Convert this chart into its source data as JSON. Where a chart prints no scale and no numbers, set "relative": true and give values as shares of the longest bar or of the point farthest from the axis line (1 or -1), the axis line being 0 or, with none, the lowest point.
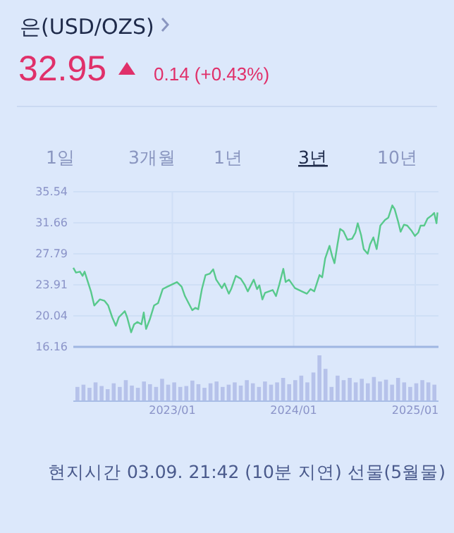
{
  "chart_data": [
    {
      "type": "line",
      "title": "은(USD/OZS)",
      "subtitle": "32.95",
      "color": "#58c98c",
      "grid": true,
      "marker": "none",
      "line_style": "solid",
      "annotations": [
        "0.14 (+0.43%)",
        "1일",
        "3개월",
        "1년",
        "3년",
        "10년",
        "현지시간 03.09. 21:42 (10분 지연) 선물(5월물)"
      ],
      "xlim": [
        "2022-03-09",
        "2025-03-12"
      ],
      "xticks": [
        {
          "value": "2023-01-01",
          "label": "2023/01"
        },
        {
          "value": "2024-01-01",
          "label": "2024/01"
        },
        {
          "value": "2025-01-01",
          "label": "2025/01"
        }
      ],
      "ylim": [
        16.16,
        35.54
      ],
      "yticks": [
        16.16,
        20.04,
        23.91,
        27.79,
        31.66,
        35.54
      ],
      "x": [
        "2022-03-09",
        "2022-03-17",
        "2022-03-29",
        "2022-04-06",
        "2022-04-12",
        "2022-05-01",
        "2022-05-11",
        "2022-05-28",
        "2022-06-11",
        "2022-06-22",
        "2022-07-04",
        "2022-07-15",
        "2022-07-24",
        "2022-08-11",
        "2022-08-18",
        "2022-08-30",
        "2022-09-08",
        "2022-09-18",
        "2022-09-30",
        "2022-10-07",
        "2022-10-14",
        "2022-10-25",
        "2022-11-07",
        "2022-11-19",
        "2022-12-03",
        "2022-12-17",
        "2023-01-15",
        "2023-01-29",
        "2023-02-08",
        "2023-02-19",
        "2023-03-02",
        "2023-03-11",
        "2023-03-20",
        "2023-03-31",
        "2023-04-11",
        "2023-04-24",
        "2023-05-04",
        "2023-05-13",
        "2023-05-30",
        "2023-06-07",
        "2023-06-20",
        "2023-06-27",
        "2023-07-11",
        "2023-07-26",
        "2023-08-06",
        "2023-08-16",
        "2023-09-03",
        "2023-09-13",
        "2023-09-20",
        "2023-09-29",
        "2023-10-07",
        "2023-10-30",
        "2023-11-09",
        "2023-11-19",
        "2023-12-01",
        "2023-12-08",
        "2023-12-18",
        "2024-01-05",
        "2024-01-26",
        "2024-02-10",
        "2024-02-21",
        "2024-03-03",
        "2024-03-19",
        "2024-03-27",
        "2024-04-05",
        "2024-04-18",
        "2024-04-26",
        "2024-05-03",
        "2024-05-12",
        "2024-05-20",
        "2024-05-30",
        "2024-06-11",
        "2024-06-25",
        "2024-07-05",
        "2024-07-12",
        "2024-07-22",
        "2024-07-30",
        "2024-08-11",
        "2024-08-18",
        "2024-08-28",
        "2024-09-07",
        "2024-09-18",
        "2024-10-02",
        "2024-10-12",
        "2024-10-24",
        "2024-10-31",
        "2024-11-10",
        "2024-11-18",
        "2024-11-28",
        "2024-12-08",
        "2024-12-20",
        "2024-12-31",
        "2025-01-10",
        "2025-01-17",
        "2025-01-28",
        "2025-02-07",
        "2025-02-20",
        "2025-02-27",
        "2025-03-06",
        "2025-03-09"
      ],
      "values": [
        26.03,
        25.44,
        25.56,
        25.03,
        25.56,
        23.09,
        21.33,
        22.09,
        21.91,
        21.33,
        19.86,
        18.8,
        19.86,
        20.62,
        19.86,
        17.98,
        18.98,
        19.27,
        18.98,
        20.45,
        18.39,
        19.57,
        21.33,
        21.62,
        23.38,
        23.68,
        24.26,
        23.68,
        22.5,
        21.62,
        20.74,
        21.03,
        20.86,
        23.38,
        25.14,
        25.32,
        25.85,
        24.56,
        23.5,
        24.09,
        22.8,
        23.38,
        25.03,
        24.67,
        23.97,
        23.09,
        24.56,
        23.38,
        23.85,
        22.09,
        22.91,
        23.27,
        22.5,
        23.97,
        25.91,
        24.26,
        24.56,
        23.5,
        23.09,
        22.8,
        23.38,
        23.09,
        25.14,
        24.85,
        27.2,
        28.79,
        27.49,
        26.61,
        28.96,
        30.9,
        30.61,
        29.55,
        29.67,
        30.43,
        31.61,
        30.14,
        28.37,
        27.79,
        28.96,
        29.84,
        28.37,
        31.31,
        32.02,
        32.31,
        33.84,
        33.37,
        31.9,
        30.55,
        31.43,
        31.31,
        30.72,
        30.02,
        30.43,
        31.31,
        31.31,
        32.19,
        32.6,
        32.9,
        31.61,
        32.95
      ]
    },
    {
      "type": "bar",
      "relative": true,
      "color": "#b6c2ea",
      "categories": [
        null,
        null,
        null,
        null,
        null,
        null,
        null,
        null,
        null,
        null,
        null,
        null,
        null,
        null,
        null,
        null,
        null,
        null,
        null,
        null,
        null,
        null,
        null,
        null,
        null,
        null,
        null,
        null,
        null,
        null,
        null,
        null,
        null,
        null,
        null,
        null,
        null,
        null,
        null,
        null,
        null,
        null,
        null,
        null,
        null,
        null,
        null,
        null,
        null,
        null,
        null,
        null,
        null,
        null,
        null,
        null,
        null,
        null,
        null,
        null
      ],
      "values": [
        0.3,
        0.35,
        0.28,
        0.4,
        0.32,
        0.25,
        0.38,
        0.3,
        0.45,
        0.33,
        0.28,
        0.42,
        0.36,
        0.3,
        0.48,
        0.35,
        0.4,
        0.3,
        0.32,
        0.44,
        0.36,
        0.28,
        0.38,
        0.42,
        0.3,
        0.35,
        0.4,
        0.33,
        0.45,
        0.38,
        0.3,
        0.42,
        0.35,
        0.4,
        0.5,
        0.36,
        0.45,
        0.55,
        0.4,
        0.62,
        1.0,
        0.7,
        0.3,
        0.55,
        0.45,
        0.5,
        0.4,
        0.48,
        0.38,
        0.52,
        0.42,
        0.46,
        0.35,
        0.5,
        0.4,
        0.3,
        0.38,
        0.45,
        0.4,
        0.35
      ]
    }
  ]
}
